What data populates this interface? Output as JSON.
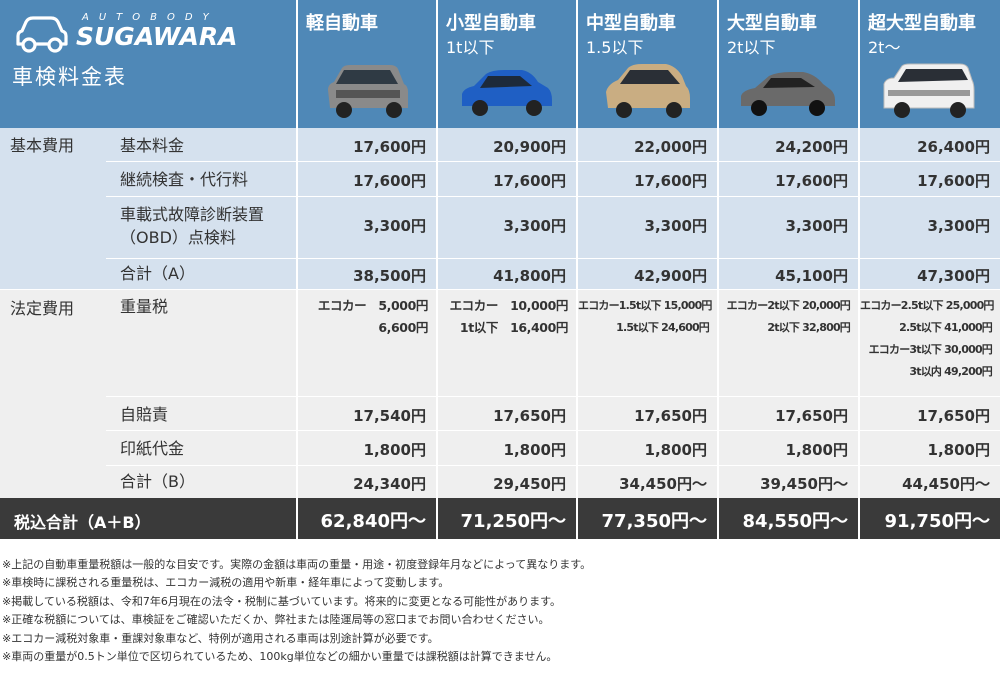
{
  "brand": {
    "top": "AUTOBODY",
    "name": "SUGAWARA",
    "title": "車検料金表"
  },
  "columns": [
    {
      "name": "軽自動車",
      "sub": "",
      "car_color": "#8a8a8a"
    },
    {
      "name": "小型自動車",
      "sub": "1t以下",
      "car_color": "#1f5fc4"
    },
    {
      "name": "中型自動車",
      "sub": "1.5以下",
      "car_color": "#c9ad82"
    },
    {
      "name": "大型自動車",
      "sub": "2t以下",
      "car_color": "#6a6a6a"
    },
    {
      "name": "超大型自動車",
      "sub": "2t～",
      "car_color": "#f0f0f0"
    }
  ],
  "groups": {
    "basic": "基本費用",
    "legal": "法定費用"
  },
  "rows": {
    "kihon": {
      "label": "基本料金",
      "values": [
        "17,600円",
        "20,900円",
        "22,000円",
        "24,200円",
        "26,400円"
      ]
    },
    "keizoku": {
      "label": "継続検査・代行料",
      "values": [
        "17,600円",
        "17,600円",
        "17,600円",
        "17,600円",
        "17,600円"
      ]
    },
    "obd": {
      "label1": "車載式故障診断装置",
      "label2": "（OBD）点検料",
      "values": [
        "3,300円",
        "3,300円",
        "3,300円",
        "3,300円",
        "3,300円"
      ]
    },
    "sum_a": {
      "label": "合計（A）",
      "values": [
        "38,500円",
        "41,800円",
        "42,900円",
        "45,100円",
        "47,300円"
      ]
    },
    "juryo": {
      "label": "重量税",
      "cells": [
        [
          "エコカー　5,000円",
          "6,600円"
        ],
        [
          "エコカー　10,000円",
          "1t以下　16,400円"
        ],
        [
          "エコカー1.5t以下 15,000円",
          "1.5t以下 24,600円"
        ],
        [
          "エコカー2t以下 20,000円",
          "2t以下 32,800円"
        ],
        [
          "エコカー2.5t以下 25,000円",
          "2.5t以下 41,000円",
          "エコカー3t以下 30,000円",
          "3t以内 49,200円"
        ]
      ]
    },
    "jibaiseki": {
      "label": "自賠責",
      "values": [
        "17,540円",
        "17,650円",
        "17,650円",
        "17,650円",
        "17,650円"
      ]
    },
    "inshi": {
      "label": "印紙代金",
      "values": [
        "1,800円",
        "1,800円",
        "1,800円",
        "1,800円",
        "1,800円"
      ]
    },
    "sum_b": {
      "label": "合計（B）",
      "values": [
        "24,340円",
        "29,450円",
        "34,450円～",
        "39,450円～",
        "44,450円～"
      ]
    }
  },
  "total": {
    "label": "税込合計（A＋B）",
    "values": [
      "62,840円～",
      "71,250円～",
      "77,350円～",
      "84,550円～",
      "91,750円～"
    ]
  },
  "colors": {
    "header": "#4f88b7",
    "basic_bg": "#d5e1ee",
    "legal_bg": "#efefef",
    "total_bg": "#3a3a3a"
  },
  "notes": [
    "※上記の自動車重量税額は一般的な目安です。実際の金額は車両の重量・用途・初度登録年月などによって異なります。",
    "※車検時に課税される重量税は、エコカー減税の適用や新車・経年車によって変動します。",
    "※掲載している税額は、令和7年6月現在の法令・税制に基づいています。将来的に変更となる可能性があります。",
    "※正確な税額については、車検証をご確認いただくか、弊社または陸運局等の窓口までお問い合わせください。",
    "※エコカー減税対象車・重課対象車など、特例が適用される車両は別途計算が必要です。",
    "※車両の重量が0.5トン単位で区切られているため、100kg単位などの細かい重量では課税額は計算できません。"
  ]
}
